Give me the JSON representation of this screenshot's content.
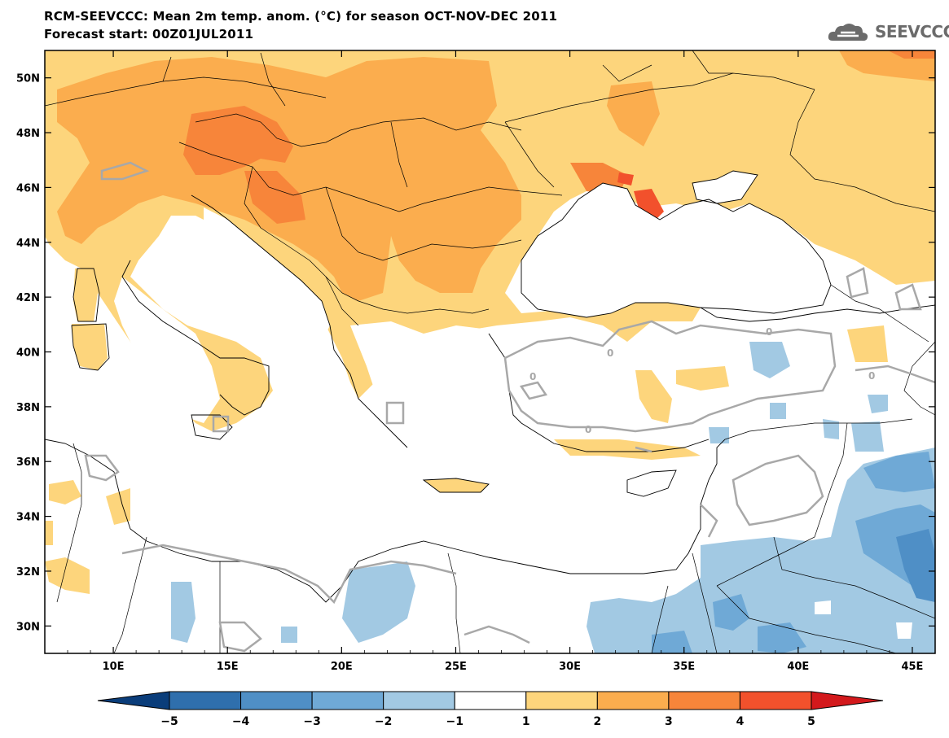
{
  "title_line1": "RCM-SEEVCCC: Mean 2m temp. anom. (°C) for season OCT-NOV-DEC 2011",
  "title_line2": "Forecast start: 00Z01JUL2011",
  "logo_text": "SEEVCCC",
  "map": {
    "lon_range": [
      7,
      46
    ],
    "lat_range": [
      29,
      51
    ],
    "lat_labels": [
      "50N",
      "48N",
      "46N",
      "44N",
      "42N",
      "40N",
      "38N",
      "36N",
      "34N",
      "32N",
      "30N"
    ],
    "lon_labels": [
      "10E",
      "15E",
      "20E",
      "25E",
      "30E",
      "35E",
      "40E",
      "45E"
    ],
    "contour_label": "0"
  },
  "colorbar": {
    "labels": [
      "−5",
      "−4",
      "−3",
      "−2",
      "−1",
      "1",
      "2",
      "3",
      "4",
      "5"
    ],
    "colors": [
      "#0a3d7a",
      "#2f6fad",
      "#4f8fc6",
      "#6fa9d6",
      "#a2c9e3",
      "#ffffff",
      "#fdd57c",
      "#fbad4e",
      "#f7853a",
      "#f2512c",
      "#d3191c"
    ]
  },
  "colors": {
    "warm1": "#fdd57c",
    "warm2": "#fbad4e",
    "warm3": "#f7853a",
    "warm4": "#f2512c",
    "cool1": "#a2c9e3",
    "cool2": "#6fa9d6",
    "cool3": "#4f8fc6",
    "contour": "#a8a8a8"
  }
}
